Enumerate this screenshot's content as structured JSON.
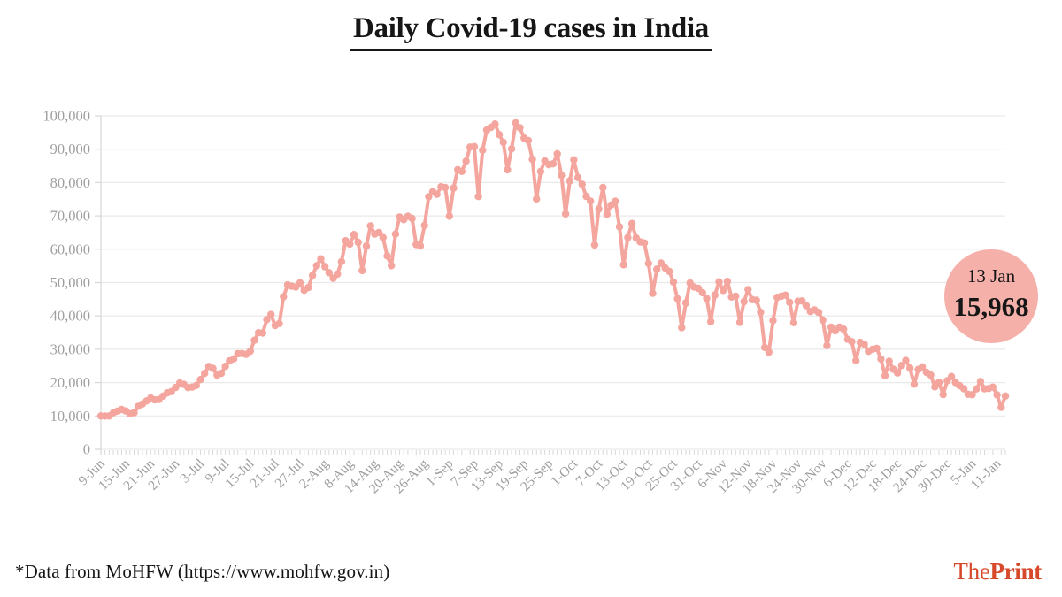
{
  "title": "Daily Covid-19 cases in India",
  "footer": {
    "source_note": "*Data from MoHFW (https://www.mohfw.gov.in)"
  },
  "logo": {
    "the": "The",
    "print": "Print"
  },
  "annotation": {
    "date": "13 Jan",
    "value": "15,968"
  },
  "colors": {
    "line": "#f4a69e",
    "annotation_bg": "#f5b1a9",
    "grid": "#e9e9e9",
    "axis": "#d7d7d7",
    "tick_label": "#9e9e9e",
    "text_dark": "#161616",
    "logo_red": "#d6492a"
  },
  "chart_data": {
    "type": "line",
    "title": "Daily Covid-19 cases in India",
    "xlabel": "",
    "ylabel": "",
    "ylim": [
      0,
      100000
    ],
    "ytick_step": 10000,
    "tick_every": 6,
    "grid": "horizontal-only",
    "legend": "none",
    "x": [
      "9-Jun",
      "10-Jun",
      "11-Jun",
      "12-Jun",
      "13-Jun",
      "14-Jun",
      "15-Jun",
      "16-Jun",
      "17-Jun",
      "18-Jun",
      "19-Jun",
      "20-Jun",
      "21-Jun",
      "22-Jun",
      "23-Jun",
      "24-Jun",
      "25-Jun",
      "26-Jun",
      "27-Jun",
      "28-Jun",
      "29-Jun",
      "30-Jun",
      "1-Jul",
      "2-Jul",
      "3-Jul",
      "4-Jul",
      "5-Jul",
      "6-Jul",
      "7-Jul",
      "8-Jul",
      "9-Jul",
      "10-Jul",
      "11-Jul",
      "12-Jul",
      "13-Jul",
      "14-Jul",
      "15-Jul",
      "16-Jul",
      "17-Jul",
      "18-Jul",
      "19-Jul",
      "20-Jul",
      "21-Jul",
      "22-Jul",
      "23-Jul",
      "24-Jul",
      "25-Jul",
      "26-Jul",
      "27-Jul",
      "28-Jul",
      "29-Jul",
      "30-Jul",
      "31-Jul",
      "1-Aug",
      "2-Aug",
      "3-Aug",
      "4-Aug",
      "5-Aug",
      "6-Aug",
      "7-Aug",
      "8-Aug",
      "9-Aug",
      "10-Aug",
      "11-Aug",
      "12-Aug",
      "13-Aug",
      "14-Aug",
      "15-Aug",
      "16-Aug",
      "17-Aug",
      "18-Aug",
      "19-Aug",
      "20-Aug",
      "21-Aug",
      "22-Aug",
      "23-Aug",
      "24-Aug",
      "25-Aug",
      "26-Aug",
      "27-Aug",
      "28-Aug",
      "29-Aug",
      "30-Aug",
      "31-Aug",
      "1-Sep",
      "2-Sep",
      "3-Sep",
      "4-Sep",
      "5-Sep",
      "6-Sep",
      "7-Sep",
      "8-Sep",
      "9-Sep",
      "10-Sep",
      "11-Sep",
      "12-Sep",
      "13-Sep",
      "14-Sep",
      "15-Sep",
      "16-Sep",
      "17-Sep",
      "18-Sep",
      "19-Sep",
      "20-Sep",
      "21-Sep",
      "22-Sep",
      "23-Sep",
      "24-Sep",
      "25-Sep",
      "26-Sep",
      "27-Sep",
      "28-Sep",
      "29-Sep",
      "30-Sep",
      "1-Oct",
      "2-Oct",
      "3-Oct",
      "4-Oct",
      "5-Oct",
      "6-Oct",
      "7-Oct",
      "8-Oct",
      "9-Oct",
      "10-Oct",
      "11-Oct",
      "12-Oct",
      "13-Oct",
      "14-Oct",
      "15-Oct",
      "16-Oct",
      "17-Oct",
      "18-Oct",
      "19-Oct",
      "20-Oct",
      "21-Oct",
      "22-Oct",
      "23-Oct",
      "24-Oct",
      "25-Oct",
      "26-Oct",
      "27-Oct",
      "28-Oct",
      "29-Oct",
      "30-Oct",
      "31-Oct",
      "1-Nov",
      "2-Nov",
      "3-Nov",
      "4-Nov",
      "5-Nov",
      "6-Nov",
      "7-Nov",
      "8-Nov",
      "9-Nov",
      "10-Nov",
      "11-Nov",
      "12-Nov",
      "13-Nov",
      "14-Nov",
      "15-Nov",
      "16-Nov",
      "17-Nov",
      "18-Nov",
      "19-Nov",
      "20-Nov",
      "21-Nov",
      "22-Nov",
      "23-Nov",
      "24-Nov",
      "25-Nov",
      "26-Nov",
      "27-Nov",
      "28-Nov",
      "29-Nov",
      "30-Nov",
      "1-Dec",
      "2-Dec",
      "3-Dec",
      "4-Dec",
      "5-Dec",
      "6-Dec",
      "7-Dec",
      "8-Dec",
      "9-Dec",
      "10-Dec",
      "11-Dec",
      "12-Dec",
      "13-Dec",
      "14-Dec",
      "15-Dec",
      "16-Dec",
      "17-Dec",
      "18-Dec",
      "19-Dec",
      "20-Dec",
      "21-Dec",
      "22-Dec",
      "23-Dec",
      "24-Dec",
      "25-Dec",
      "26-Dec",
      "27-Dec",
      "28-Dec",
      "29-Dec",
      "30-Dec",
      "31-Dec",
      "1-Jan",
      "2-Jan",
      "3-Jan",
      "4-Jan",
      "5-Jan",
      "6-Jan",
      "7-Jan",
      "8-Jan",
      "9-Jan",
      "10-Jan",
      "11-Jan",
      "12-Jan",
      "13-Jan"
    ],
    "values": [
      9987,
      9985,
      9996,
      10956,
      11458,
      11929,
      11503,
      10667,
      10974,
      12881,
      13586,
      14516,
      15413,
      14821,
      14933,
      15968,
      16922,
      17296,
      18552,
      19906,
      19459,
      18522,
      18653,
      19148,
      20903,
      22771,
      24850,
      24248,
      22252,
      22752,
      24879,
      26506,
      27114,
      28637,
      28701,
      28498,
      29429,
      32695,
      34956,
      34884,
      38902,
      40425,
      37148,
      37724,
      45720,
      49310,
      48916,
      48661,
      49931,
      47703,
      48513,
      52123,
      55078,
      57118,
      54735,
      52972,
      51282,
      52509,
      56282,
      62538,
      61537,
      64399,
      62064,
      53601,
      60963,
      66999,
      64553,
      65002,
      63490,
      57981,
      55079,
      64531,
      69652,
      68898,
      69874,
      69239,
      61408,
      60975,
      67151,
      75760,
      77266,
      76472,
      78761,
      78512,
      69921,
      78357,
      83883,
      83341,
      86432,
      90632,
      90802,
      75809,
      89706,
      95735,
      96551,
      97570,
      94372,
      92071,
      83809,
      90123,
      97894,
      96424,
      93337,
      92605,
      86961,
      75083,
      83347,
      86508,
      85362,
      85619,
      88600,
      82170,
      70589,
      80472,
      86821,
      81484,
      79476,
      75829,
      74442,
      61267,
      72049,
      78524,
      70496,
      73272,
      74383,
      66732,
      55342,
      63509,
      67708,
      63371,
      62212,
      61871,
      55722,
      46790,
      54044,
      55839,
      54366,
      53370,
      50129,
      45148,
      36470,
      43893,
      49881,
      48648,
      48268,
      46963,
      45231,
      38310,
      46253,
      50209,
      47638,
      50356,
      45674,
      45903,
      38073,
      44281,
      47905,
      44879,
      44684,
      41100,
      30548,
      29163,
      38617,
      45576,
      45882,
      46232,
      44059,
      37975,
      44376,
      44489,
      43082,
      41322,
      41810,
      41053,
      38772,
      31118,
      36604,
      35551,
      36595,
      36011,
      32981,
      32272,
      26567,
      32080,
      31521,
      29398,
      30006,
      30254,
      27071,
      22065,
      26382,
      24010,
      22890,
      25152,
      26624,
      24337,
      19556,
      23950,
      24712,
      23067,
      22273,
      18732,
      20021,
      16432,
      20549,
      21821,
      20035,
      19078,
      18177,
      16504,
      16375,
      18088,
      20346,
      18139,
      18222,
      18645,
      16311,
      12584,
      15968
    ],
    "annotation_point": {
      "label": "13 Jan",
      "value": 15968
    }
  }
}
